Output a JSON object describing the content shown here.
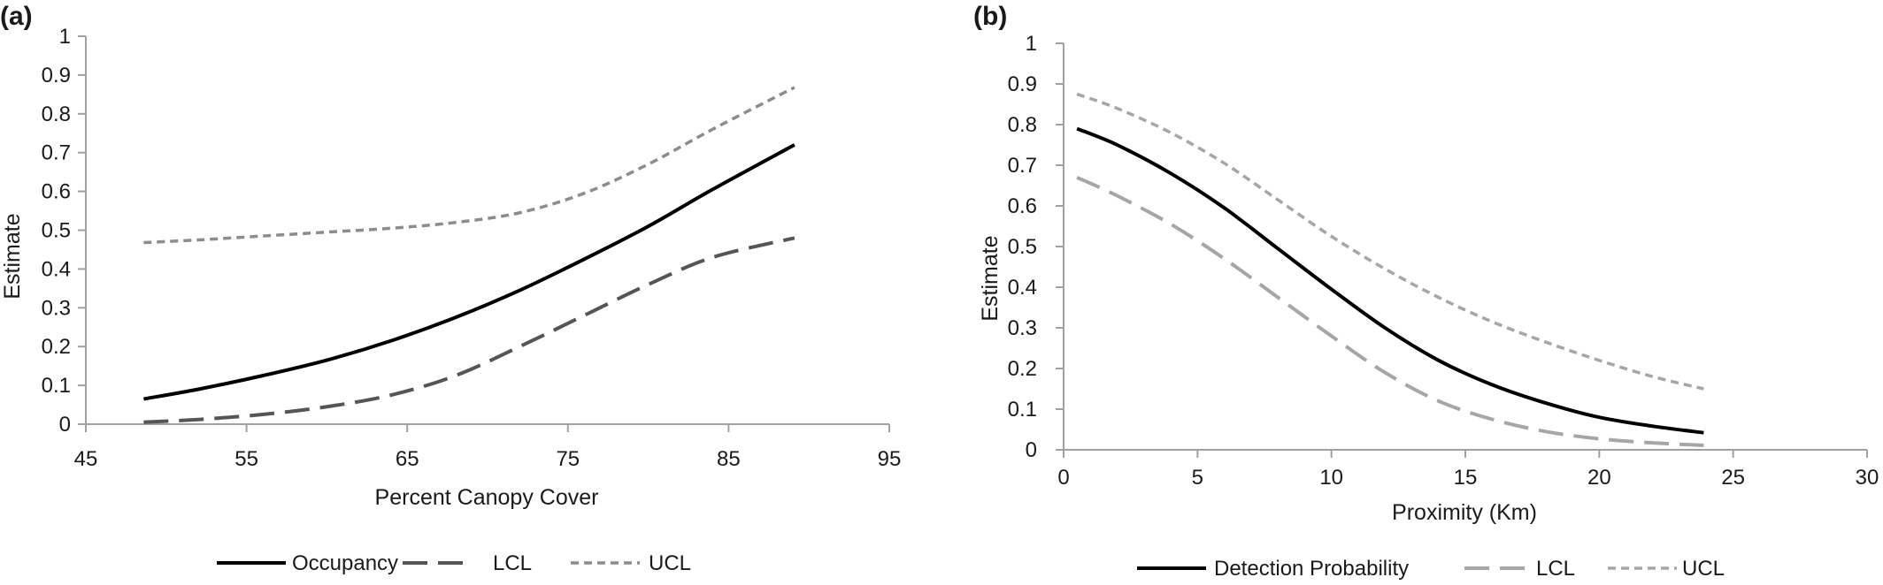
{
  "chart_data": [
    {
      "panel_label": "(a)",
      "type": "line",
      "xlabel": "Percent Canopy Cover",
      "ylabel": "Estimate",
      "xlim": [
        45,
        95
      ],
      "ylim": [
        0,
        1
      ],
      "xticks": [
        "45",
        "55",
        "65",
        "75",
        "85",
        "95"
      ],
      "yticks": [
        "0",
        "0.1",
        "0.2",
        "0.3",
        "0.4",
        "0.5",
        "0.6",
        "0.7",
        "0.8",
        "0.9",
        "1"
      ],
      "grid": false,
      "legend_position": "bottom",
      "series": [
        {
          "name": "Occupancy",
          "style": "solid",
          "color": "#000000",
          "x": [
            48.6,
            52,
            56,
            60,
            64,
            68,
            72,
            76,
            80,
            84,
            89.1
          ],
          "y": [
            0.065,
            0.09,
            0.125,
            0.165,
            0.215,
            0.275,
            0.345,
            0.425,
            0.51,
            0.605,
            0.72
          ]
        },
        {
          "name": "LCL",
          "style": "long-dash",
          "color": "#555555",
          "x": [
            48.6,
            52,
            56,
            60,
            64,
            68,
            72,
            76,
            80,
            84,
            89.1
          ],
          "y": [
            0.005,
            0.012,
            0.025,
            0.045,
            0.075,
            0.125,
            0.2,
            0.28,
            0.36,
            0.43,
            0.48
          ]
        },
        {
          "name": "UCL",
          "style": "short-dash",
          "color": "#8c8c8c",
          "x": [
            48.6,
            52,
            56,
            60,
            64,
            68,
            72,
            76,
            80,
            84,
            89.1
          ],
          "y": [
            0.468,
            0.475,
            0.485,
            0.495,
            0.505,
            0.52,
            0.545,
            0.595,
            0.67,
            0.76,
            0.868
          ]
        }
      ]
    },
    {
      "panel_label": "(b)",
      "type": "line",
      "xlabel": "Proximity (Km)",
      "ylabel": "Estimate",
      "xlim": [
        0,
        30
      ],
      "ylim": [
        0,
        1
      ],
      "xticks": [
        "0",
        "5",
        "10",
        "15",
        "20",
        "25",
        "30"
      ],
      "yticks": [
        "0",
        "0.1",
        "0.2",
        "0.3",
        "0.4",
        "0.5",
        "0.6",
        "0.7",
        "0.8",
        "0.9",
        "1"
      ],
      "grid": false,
      "legend_position": "bottom",
      "series": [
        {
          "name": "Detection Probability",
          "style": "solid",
          "color": "#000000",
          "x": [
            0.5,
            2,
            4,
            6,
            8,
            10,
            12,
            14,
            16,
            18,
            20,
            22,
            23.9
          ],
          "y": [
            0.79,
            0.75,
            0.68,
            0.595,
            0.495,
            0.395,
            0.3,
            0.22,
            0.16,
            0.115,
            0.08,
            0.058,
            0.042
          ]
        },
        {
          "name": "LCL",
          "style": "long-dash",
          "color": "#a6a6a6",
          "x": [
            0.5,
            2,
            4,
            6,
            8,
            10,
            12,
            14,
            16,
            18,
            20,
            22,
            23.9
          ],
          "y": [
            0.67,
            0.625,
            0.555,
            0.47,
            0.375,
            0.28,
            0.19,
            0.12,
            0.075,
            0.045,
            0.027,
            0.017,
            0.011
          ]
        },
        {
          "name": "UCL",
          "style": "short-dash",
          "color": "#a6a6a6",
          "x": [
            0.5,
            2,
            4,
            6,
            8,
            10,
            12,
            14,
            16,
            18,
            20,
            22,
            23.9
          ],
          "y": [
            0.875,
            0.84,
            0.78,
            0.705,
            0.615,
            0.525,
            0.445,
            0.375,
            0.315,
            0.265,
            0.22,
            0.18,
            0.15
          ]
        }
      ]
    }
  ]
}
